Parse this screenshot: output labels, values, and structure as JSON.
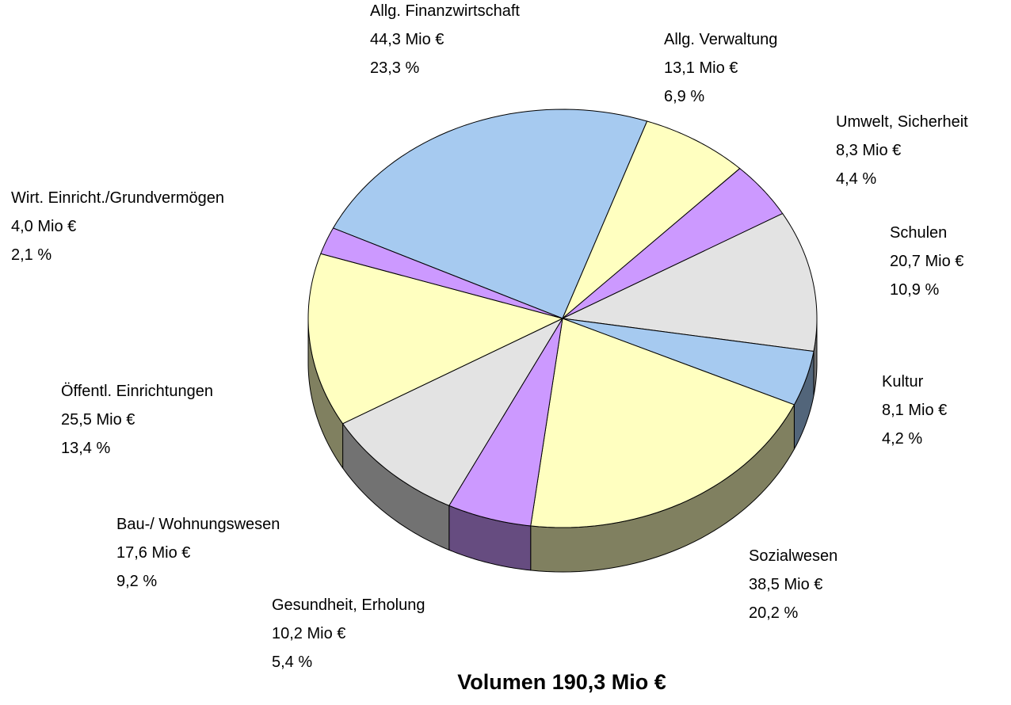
{
  "chart_data": {
    "type": "pie",
    "title": "Volumen 190,3 Mio €",
    "categories": [
      "Allg. Finanzwirtschaft",
      "Allg. Verwaltung",
      "Umwelt, Sicherheit",
      "Schulen",
      "Kultur",
      "Sozialwesen",
      "Gesundheit, Erholung",
      "Bau-/ Wohnungswesen",
      "Öffentl. Einrichtungen",
      "Wirt. Einricht./Grundvermögen"
    ],
    "values": [
      44.3,
      13.1,
      8.3,
      20.7,
      8.1,
      38.5,
      10.2,
      17.6,
      25.5,
      4.0
    ],
    "value_labels": [
      "44,3 Mio €",
      "13,1 Mio €",
      "8,3 Mio €",
      "20,7 Mio €",
      "8,1 Mio €",
      "38,5 Mio €",
      "10,2 Mio €",
      "17,6 Mio €",
      "25,5 Mio €",
      "4,0 Mio €"
    ],
    "percents": [
      23.3,
      6.9,
      4.4,
      10.9,
      4.2,
      20.2,
      5.4,
      9.2,
      13.4,
      2.1
    ],
    "percent_labels": [
      "23,3 %",
      "6,9 %",
      "4,4 %",
      "10,9 %",
      "4,2 %",
      "20,2 %",
      "5,4 %",
      "9,2 %",
      "13,4 %",
      "2,1 %"
    ],
    "colors": [
      "#a6caf0",
      "#ffffc0",
      "#cc99ff",
      "#e3e3e3",
      "#a6caf0",
      "#ffffc0",
      "#cc99ff",
      "#e3e3e3",
      "#ffffc0",
      "#cc99ff"
    ],
    "side_colors": [
      "#52657a",
      "#808060",
      "#664c80",
      "#727272",
      "#52657a",
      "#808060",
      "#664c80",
      "#727272",
      "#808060",
      "#664c80"
    ]
  }
}
